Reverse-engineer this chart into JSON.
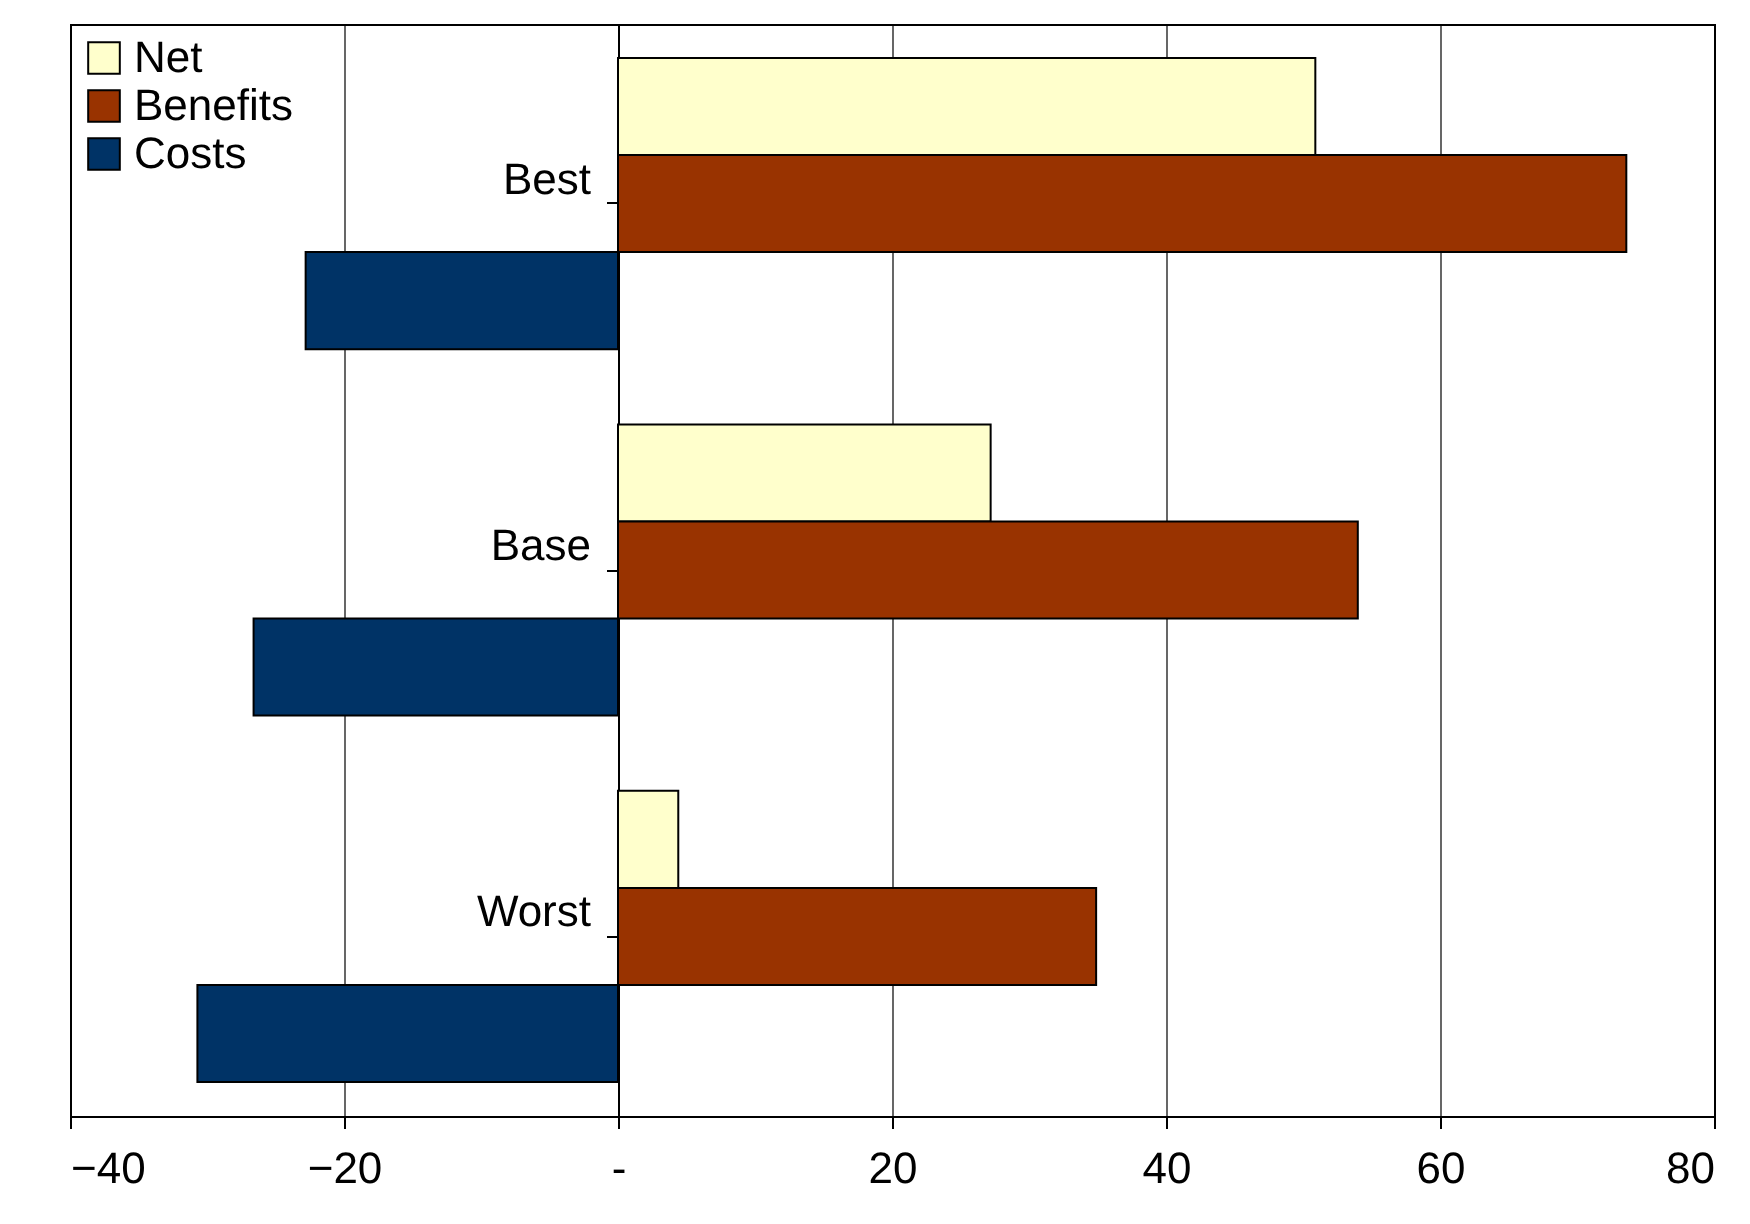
{
  "chart_data": {
    "type": "bar",
    "orientation": "horizontal",
    "categories": [
      "Best",
      "Base",
      "Worst"
    ],
    "series": [
      {
        "name": "Net",
        "color": "#ffffcc",
        "values": [
          50.9,
          27.2,
          4.4
        ]
      },
      {
        "name": "Benefits",
        "color": "#993300",
        "values": [
          73.6,
          54.0,
          34.9
        ]
      },
      {
        "name": "Costs",
        "color": "#003366",
        "values": [
          -22.8,
          -26.6,
          -30.7
        ]
      }
    ],
    "xlim": [
      -40,
      80
    ],
    "xticks": [
      -40,
      -20,
      {
        "value": 0,
        "label": "-"
      },
      20,
      40,
      60,
      80
    ],
    "grid": "x",
    "legend": "top left"
  }
}
